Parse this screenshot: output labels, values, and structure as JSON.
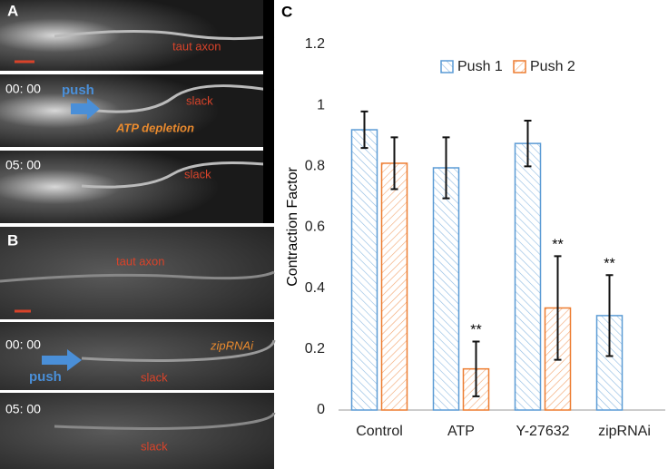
{
  "panels": {
    "A": {
      "label": "A",
      "frames": [
        {
          "annotations": [
            "taut axon"
          ]
        },
        {
          "time": "00: 00",
          "annotations": [
            "push",
            "slack",
            "ATP depletion"
          ]
        },
        {
          "time": "05: 00",
          "annotations": [
            "slack"
          ]
        }
      ]
    },
    "B": {
      "label": "B",
      "frames": [
        {
          "annotations": [
            "taut axon"
          ]
        },
        {
          "time": "00: 00",
          "annotations": [
            "zipRNAi",
            "push",
            "slack"
          ]
        },
        {
          "time": "05: 00",
          "annotations": [
            "slack"
          ]
        }
      ]
    }
  },
  "chart_data": {
    "type": "bar",
    "panel_label": "C",
    "y_label": "Contraction Factor",
    "categories": [
      "Control",
      "ATP",
      "Y-27632",
      "zipRNAi"
    ],
    "series": [
      {
        "name": "Push 1",
        "color": "#5b9bd5",
        "values": [
          0.92,
          0.795,
          0.875,
          0.31
        ],
        "errors": [
          0.06,
          0.1,
          0.075,
          0.133
        ],
        "annotations": [
          null,
          null,
          null,
          "**"
        ]
      },
      {
        "name": "Push 2",
        "color": "#ed7d31",
        "values": [
          0.81,
          0.135,
          0.335,
          null
        ],
        "errors": [
          0.085,
          0.09,
          0.17,
          null
        ],
        "annotations": [
          null,
          "**",
          "**",
          null
        ]
      }
    ],
    "ylim": [
      0,
      1.2
    ],
    "yticks": [
      0,
      0.2,
      0.4,
      0.6,
      0.8,
      1,
      1.2
    ],
    "legend": "top"
  }
}
